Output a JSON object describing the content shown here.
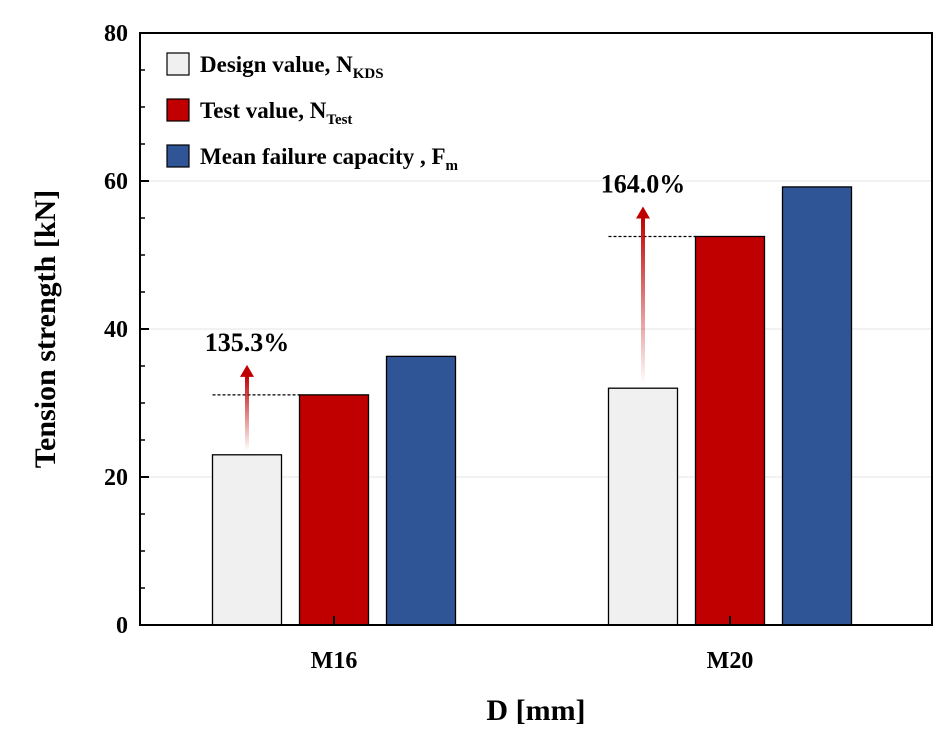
{
  "chart_data": {
    "type": "bar",
    "xlabel": "D [mm]",
    "ylabel": "Tension strength [kN]",
    "ylim": [
      0,
      80
    ],
    "yticks": [
      0,
      20,
      40,
      60,
      80
    ],
    "grid": true,
    "legend_position": "top-left",
    "categories": [
      "M16",
      "M20"
    ],
    "series": [
      {
        "name": "Design value, N",
        "name_sub": "KDS",
        "color": "#f0f0f0",
        "values": [
          23.0,
          32.0
        ]
      },
      {
        "name": "Test value, N",
        "name_sub": "Test",
        "color": "#c00000",
        "values": [
          31.1,
          52.5
        ]
      },
      {
        "name": "Mean failure capacity , F",
        "name_sub": "m",
        "color": "#2f5597",
        "values": [
          36.3,
          59.2
        ]
      }
    ],
    "annotations": [
      {
        "category": "M16",
        "text": "135.3%",
        "from_value": 23.0,
        "to_value": 31.1
      },
      {
        "category": "M20",
        "text": "164.0%",
        "from_value": 32.0,
        "to_value": 52.5
      }
    ],
    "arrow_color": "#c00000"
  }
}
